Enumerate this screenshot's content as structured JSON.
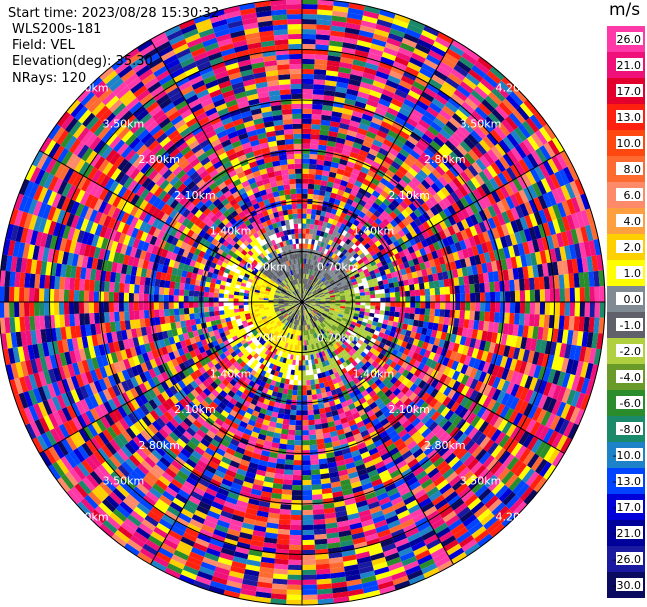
{
  "header": {
    "start_time": "Start time: 2023/08/28 15:30:32",
    "instrument": "WLS200s-181",
    "field": "Field: VEL",
    "elevation": "Elevation(deg): 35.30",
    "nrays": "NRays: 120"
  },
  "colorbar": {
    "unit": "m/s",
    "ticks": [
      "26.0",
      "21.0",
      "17.0",
      "13.0",
      "10.0",
      "8.0",
      "6.0",
      "4.0",
      "2.0",
      "1.0",
      "0.0",
      "-1.0",
      "-2.0",
      "-4.0",
      "-6.0",
      "-8.0",
      "-10.0",
      "-13.0",
      "-17.0",
      "-21.0",
      "-26.0",
      "-30.0"
    ],
    "colors": [
      "#ff3aa8",
      "#f0107a",
      "#e4002c",
      "#ff2010",
      "#ff4810",
      "#ff6a30",
      "#ff8a6a",
      "#ffa040",
      "#ffd000",
      "#ffff00",
      "#808a92",
      "#60606a",
      "#b0d040",
      "#6a9a2a",
      "#2a8c2a",
      "#1a8a6a",
      "#1e82c8",
      "#0044ff",
      "#0000d8",
      "#00009a",
      "#1a1aa0",
      "#0a0a60"
    ]
  },
  "chart_data": {
    "type": "ppi",
    "field": "VEL",
    "units": "m/s",
    "range_rings_km": [
      0.7,
      1.4,
      2.1,
      2.8,
      3.5,
      4.2
    ],
    "ring_labels": [
      "0.70km",
      "1.40km",
      "2.10km",
      "2.80km",
      "3.50km",
      "4.20km"
    ],
    "nrays": 120,
    "elevation_deg": 35.3,
    "clim": [
      -30,
      30
    ]
  }
}
